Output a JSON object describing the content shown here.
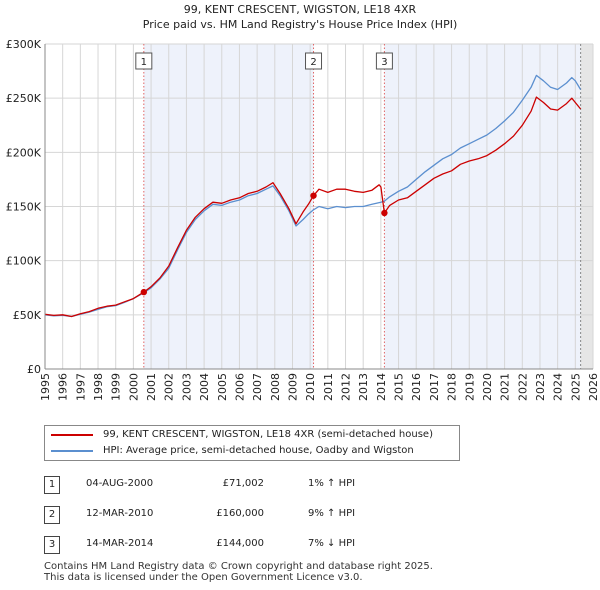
{
  "chart_data": {
    "type": "line",
    "title": "99, KENT CRESCENT, WIGSTON, LE18 4XR",
    "subtitle": "Price paid vs. HM Land Registry's House Price Index (HPI)",
    "xlim": [
      1995,
      2026
    ],
    "ylim": [
      0,
      300000
    ],
    "x_ticks": [
      "1995",
      "1996",
      "1997",
      "1998",
      "1999",
      "2000",
      "2001",
      "2002",
      "2003",
      "2004",
      "2005",
      "2006",
      "2007",
      "2008",
      "2009",
      "2010",
      "2011",
      "2012",
      "2013",
      "2014",
      "2015",
      "2016",
      "2017",
      "2018",
      "2019",
      "2020",
      "2021",
      "2022",
      "2023",
      "2024",
      "2025",
      "2026"
    ],
    "y_ticks": [
      {
        "value": 0,
        "label": "£0"
      },
      {
        "value": 50000,
        "label": "£50K"
      },
      {
        "value": 100000,
        "label": "£100K"
      },
      {
        "value": 150000,
        "label": "£150K"
      },
      {
        "value": 200000,
        "label": "£200K"
      },
      {
        "value": 250000,
        "label": "£250K"
      },
      {
        "value": 300000,
        "label": "£300K"
      }
    ],
    "series": [
      {
        "name": "99, KENT CRESCENT, WIGSTON, LE18 4XR (semi-detached house)",
        "color": "#cc0000",
        "points": [
          [
            1995.0,
            50500
          ],
          [
            1995.5,
            49500
          ],
          [
            1996.0,
            50000
          ],
          [
            1996.5,
            48500
          ],
          [
            1997.0,
            51000
          ],
          [
            1997.5,
            53000
          ],
          [
            1998.0,
            56000
          ],
          [
            1998.5,
            58000
          ],
          [
            1999.0,
            59000
          ],
          [
            1999.5,
            62000
          ],
          [
            2000.0,
            65000
          ],
          [
            2000.59,
            71002
          ],
          [
            2001.0,
            76000
          ],
          [
            2001.5,
            84000
          ],
          [
            2002.0,
            95000
          ],
          [
            2002.5,
            112000
          ],
          [
            2003.0,
            128000
          ],
          [
            2003.5,
            140000
          ],
          [
            2004.0,
            148000
          ],
          [
            2004.5,
            154000
          ],
          [
            2005.0,
            153000
          ],
          [
            2005.5,
            156000
          ],
          [
            2006.0,
            158000
          ],
          [
            2006.5,
            162000
          ],
          [
            2007.0,
            164000
          ],
          [
            2007.5,
            168000
          ],
          [
            2007.9,
            172000
          ],
          [
            2008.3,
            162000
          ],
          [
            2008.8,
            148000
          ],
          [
            2009.2,
            134000
          ],
          [
            2009.6,
            145000
          ],
          [
            2009.9,
            152000
          ],
          [
            2010.19,
            160000
          ],
          [
            2010.5,
            166000
          ],
          [
            2011.0,
            163000
          ],
          [
            2011.5,
            166000
          ],
          [
            2012.0,
            166000
          ],
          [
            2012.5,
            164000
          ],
          [
            2013.0,
            163000
          ],
          [
            2013.5,
            165000
          ],
          [
            2013.9,
            170000
          ],
          [
            2014.0,
            168000
          ],
          [
            2014.2,
            144000
          ],
          [
            2014.5,
            151000
          ],
          [
            2015.0,
            156000
          ],
          [
            2015.5,
            158000
          ],
          [
            2016.0,
            164000
          ],
          [
            2016.5,
            170000
          ],
          [
            2017.0,
            176000
          ],
          [
            2017.5,
            180000
          ],
          [
            2018.0,
            183000
          ],
          [
            2018.5,
            189000
          ],
          [
            2019.0,
            192000
          ],
          [
            2019.5,
            194000
          ],
          [
            2020.0,
            197000
          ],
          [
            2020.5,
            202000
          ],
          [
            2021.0,
            208000
          ],
          [
            2021.5,
            215000
          ],
          [
            2022.0,
            225000
          ],
          [
            2022.5,
            238000
          ],
          [
            2022.8,
            251000
          ],
          [
            2023.2,
            246000
          ],
          [
            2023.6,
            240000
          ],
          [
            2024.0,
            239000
          ],
          [
            2024.5,
            245000
          ],
          [
            2024.8,
            250000
          ],
          [
            2025.0,
            246000
          ],
          [
            2025.3,
            240000
          ]
        ]
      },
      {
        "name": "HPI: Average price, semi-detached house, Oadby and Wigston",
        "color": "#5b8fcf",
        "points": [
          [
            1995.0,
            50000
          ],
          [
            1995.5,
            49000
          ],
          [
            1996.0,
            49500
          ],
          [
            1996.5,
            48500
          ],
          [
            1997.0,
            50500
          ],
          [
            1997.5,
            52500
          ],
          [
            1998.0,
            55000
          ],
          [
            1998.5,
            57500
          ],
          [
            1999.0,
            58500
          ],
          [
            1999.5,
            61500
          ],
          [
            2000.0,
            65000
          ],
          [
            2000.59,
            70300
          ],
          [
            2001.0,
            75000
          ],
          [
            2001.5,
            83000
          ],
          [
            2002.0,
            93000
          ],
          [
            2002.5,
            110000
          ],
          [
            2003.0,
            126000
          ],
          [
            2003.5,
            138000
          ],
          [
            2004.0,
            146000
          ],
          [
            2004.5,
            152000
          ],
          [
            2005.0,
            151000
          ],
          [
            2005.5,
            154000
          ],
          [
            2006.0,
            156000
          ],
          [
            2006.5,
            160000
          ],
          [
            2007.0,
            162000
          ],
          [
            2007.5,
            166000
          ],
          [
            2007.9,
            169000
          ],
          [
            2008.3,
            160000
          ],
          [
            2008.8,
            146000
          ],
          [
            2009.2,
            132000
          ],
          [
            2009.6,
            138000
          ],
          [
            2009.9,
            143000
          ],
          [
            2010.19,
            147000
          ],
          [
            2010.5,
            150000
          ],
          [
            2011.0,
            148000
          ],
          [
            2011.5,
            150000
          ],
          [
            2012.0,
            149000
          ],
          [
            2012.5,
            150000
          ],
          [
            2013.0,
            150000
          ],
          [
            2013.5,
            152000
          ],
          [
            2014.0,
            154000
          ],
          [
            2014.2,
            155000
          ],
          [
            2014.5,
            159000
          ],
          [
            2015.0,
            164000
          ],
          [
            2015.5,
            168000
          ],
          [
            2016.0,
            175000
          ],
          [
            2016.5,
            182000
          ],
          [
            2017.0,
            188000
          ],
          [
            2017.5,
            194000
          ],
          [
            2018.0,
            198000
          ],
          [
            2018.5,
            204000
          ],
          [
            2019.0,
            208000
          ],
          [
            2019.5,
            212000
          ],
          [
            2020.0,
            216000
          ],
          [
            2020.5,
            222000
          ],
          [
            2021.0,
            229000
          ],
          [
            2021.5,
            237000
          ],
          [
            2022.0,
            248000
          ],
          [
            2022.5,
            260000
          ],
          [
            2022.8,
            271000
          ],
          [
            2023.2,
            266000
          ],
          [
            2023.6,
            260000
          ],
          [
            2024.0,
            258000
          ],
          [
            2024.5,
            264000
          ],
          [
            2024.8,
            269000
          ],
          [
            2025.0,
            266000
          ],
          [
            2025.3,
            258000
          ]
        ]
      }
    ],
    "sales": [
      {
        "id": "1",
        "x": 2000.59,
        "price": 71002
      },
      {
        "id": "2",
        "x": 2010.19,
        "price": 160000
      },
      {
        "id": "3",
        "x": 2014.2,
        "price": 144000
      }
    ],
    "shaded_bands": [
      [
        2000.59,
        2010.19
      ],
      [
        2014.2,
        2025.3
      ]
    ],
    "forecast_start": 2025.3
  },
  "legend": {
    "items": [
      {
        "label": "99, KENT CRESCENT, WIGSTON, LE18 4XR (semi-detached house)",
        "color": "#cc0000"
      },
      {
        "label": "HPI: Average price, semi-detached house, Oadby and Wigston",
        "color": "#5b8fcf"
      }
    ]
  },
  "transactions": [
    {
      "num": "1",
      "date": "04-AUG-2000",
      "price": "£71,002",
      "hpi": "1% ↑ HPI"
    },
    {
      "num": "2",
      "date": "12-MAR-2010",
      "price": "£160,000",
      "hpi": "9% ↑ HPI"
    },
    {
      "num": "3",
      "date": "14-MAR-2014",
      "price": "£144,000",
      "hpi": "7% ↓ HPI"
    }
  ],
  "footer": {
    "line1": "Contains HM Land Registry data © Crown copyright and database right 2025.",
    "line2": "This data is licensed under the Open Government Licence v3.0."
  }
}
